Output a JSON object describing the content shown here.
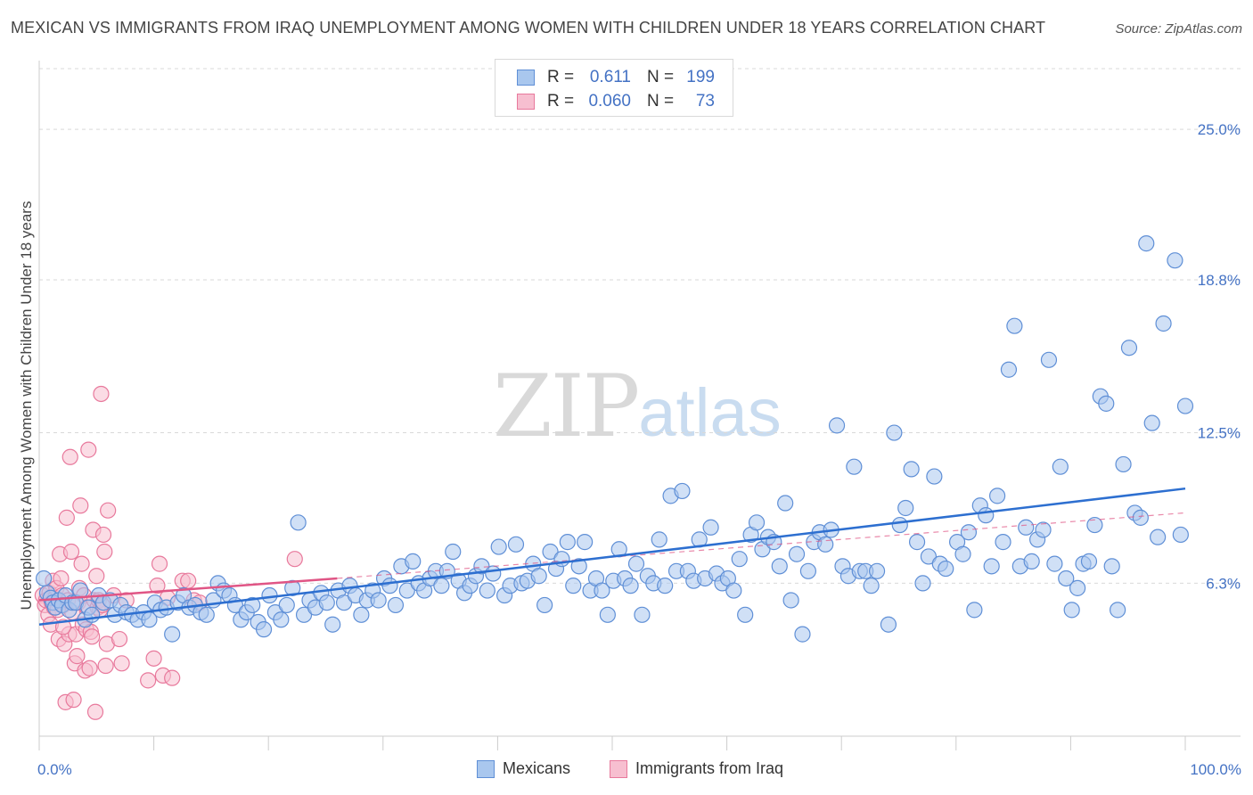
{
  "title": "MEXICAN VS IMMIGRANTS FROM IRAQ UNEMPLOYMENT AMONG WOMEN WITH CHILDREN UNDER 18 YEARS CORRELATION CHART",
  "source": "Source: ZipAtlas.com",
  "watermark": {
    "zip": "ZIP",
    "atlas": "atlas"
  },
  "legend": {
    "rows": [
      {
        "r_label": "R =",
        "r_value": "0.611",
        "n_label": "N =",
        "n_value": "199"
      },
      {
        "r_label": "R =",
        "r_value": "0.060",
        "n_label": "N =",
        "n_value": "73"
      }
    ]
  },
  "bottom_legend": {
    "mexicans": "Mexicans",
    "iraq": "Immigrants from Iraq"
  },
  "colors": {
    "blue_fill": "#a9c7ee",
    "blue_stroke": "#5f8fd6",
    "blue_line": "#2d6fd0",
    "pink_fill": "#f7bfd0",
    "pink_stroke": "#e8799c",
    "pink_line": "#e05585",
    "tick_text": "#4472c4",
    "grid": "#d9d9d9"
  },
  "chart_data": {
    "type": "scatter",
    "title": "MEXICAN VS IMMIGRANTS FROM IRAQ UNEMPLOYMENT AMONG WOMEN WITH CHILDREN UNDER 18 YEARS CORRELATION CHART",
    "xlabel": "",
    "ylabel": "Unemployment Among Women with Children Under 18 years",
    "xlim": [
      0,
      100
    ],
    "ylim": [
      0,
      27.5
    ],
    "x_tick_labels": [
      "0.0%",
      "100.0%"
    ],
    "y_ticks": [
      6.3,
      12.5,
      18.8,
      25.0
    ],
    "y_tick_labels": [
      "6.3%",
      "12.5%",
      "18.8%",
      "25.0%"
    ],
    "grid": true,
    "legend_position": "top-center",
    "series": [
      {
        "name": "Mexicans",
        "R": 0.611,
        "N": 199,
        "trend": {
          "x": [
            0,
            100
          ],
          "y": [
            4.6,
            10.2
          ]
        },
        "points": [
          [
            0.4,
            6.5
          ],
          [
            0.7,
            5.9
          ],
          [
            1.0,
            5.7
          ],
          [
            1.2,
            5.5
          ],
          [
            1.4,
            5.3
          ],
          [
            1.7,
            5.6
          ],
          [
            2.0,
            5.4
          ],
          [
            2.3,
            5.8
          ],
          [
            2.6,
            5.2
          ],
          [
            2.9,
            5.5
          ],
          [
            3.2,
            5.5
          ],
          [
            3.6,
            6.0
          ],
          [
            4.0,
            4.8
          ],
          [
            4.3,
            5.3
          ],
          [
            4.6,
            5.0
          ],
          [
            5.2,
            5.8
          ],
          [
            5.6,
            5.5
          ],
          [
            6.2,
            5.6
          ],
          [
            6.6,
            5.0
          ],
          [
            7.1,
            5.4
          ],
          [
            7.6,
            5.1
          ],
          [
            8.1,
            5.0
          ],
          [
            8.6,
            4.8
          ],
          [
            9.1,
            5.1
          ],
          [
            9.6,
            4.8
          ],
          [
            10.1,
            5.5
          ],
          [
            10.6,
            5.2
          ],
          [
            11.1,
            5.3
          ],
          [
            11.6,
            4.2
          ],
          [
            12.1,
            5.5
          ],
          [
            12.6,
            5.8
          ],
          [
            13.1,
            5.3
          ],
          [
            13.6,
            5.4
          ],
          [
            14.1,
            5.1
          ],
          [
            14.6,
            5.0
          ],
          [
            15.2,
            5.6
          ],
          [
            15.6,
            6.3
          ],
          [
            16.1,
            6.0
          ],
          [
            16.6,
            5.8
          ],
          [
            17.1,
            5.4
          ],
          [
            17.6,
            4.8
          ],
          [
            18.1,
            5.1
          ],
          [
            18.6,
            5.4
          ],
          [
            19.1,
            4.7
          ],
          [
            19.6,
            4.4
          ],
          [
            20.1,
            5.8
          ],
          [
            20.6,
            5.1
          ],
          [
            21.1,
            4.8
          ],
          [
            21.6,
            5.4
          ],
          [
            22.1,
            6.1
          ],
          [
            22.6,
            8.8
          ],
          [
            23.1,
            5.0
          ],
          [
            23.6,
            5.6
          ],
          [
            24.1,
            5.3
          ],
          [
            24.6,
            5.9
          ],
          [
            25.1,
            5.5
          ],
          [
            25.6,
            4.6
          ],
          [
            26.1,
            6.0
          ],
          [
            26.6,
            5.5
          ],
          [
            27.1,
            6.2
          ],
          [
            27.6,
            5.8
          ],
          [
            28.1,
            5.0
          ],
          [
            28.6,
            5.6
          ],
          [
            29.1,
            6.0
          ],
          [
            29.6,
            5.6
          ],
          [
            30.1,
            6.5
          ],
          [
            30.6,
            6.2
          ],
          [
            31.1,
            5.4
          ],
          [
            31.6,
            7.0
          ],
          [
            32.1,
            6.0
          ],
          [
            32.6,
            7.2
          ],
          [
            33.1,
            6.3
          ],
          [
            33.6,
            6.0
          ],
          [
            34.1,
            6.5
          ],
          [
            34.6,
            6.8
          ],
          [
            35.1,
            6.2
          ],
          [
            35.6,
            6.8
          ],
          [
            36.1,
            7.6
          ],
          [
            36.6,
            6.4
          ],
          [
            37.1,
            5.9
          ],
          [
            37.6,
            6.2
          ],
          [
            38.1,
            6.6
          ],
          [
            38.6,
            7.0
          ],
          [
            39.1,
            6.0
          ],
          [
            39.6,
            6.7
          ],
          [
            40.1,
            7.8
          ],
          [
            40.6,
            5.8
          ],
          [
            41.1,
            6.2
          ],
          [
            41.6,
            7.9
          ],
          [
            42.1,
            6.3
          ],
          [
            42.6,
            6.4
          ],
          [
            43.1,
            7.1
          ],
          [
            43.6,
            6.6
          ],
          [
            44.1,
            5.4
          ],
          [
            44.6,
            7.6
          ],
          [
            45.1,
            6.9
          ],
          [
            45.6,
            7.3
          ],
          [
            46.1,
            8.0
          ],
          [
            46.6,
            6.2
          ],
          [
            47.1,
            7.0
          ],
          [
            47.6,
            8.0
          ],
          [
            48.1,
            6.0
          ],
          [
            48.6,
            6.5
          ],
          [
            49.1,
            6.0
          ],
          [
            49.6,
            5.0
          ],
          [
            50.1,
            6.4
          ],
          [
            50.6,
            7.7
          ],
          [
            51.1,
            6.5
          ],
          [
            51.6,
            6.2
          ],
          [
            52.1,
            7.1
          ],
          [
            52.6,
            5.0
          ],
          [
            53.1,
            6.6
          ],
          [
            53.6,
            6.3
          ],
          [
            54.1,
            8.1
          ],
          [
            54.6,
            6.2
          ],
          [
            55.1,
            9.9
          ],
          [
            55.6,
            6.8
          ],
          [
            56.1,
            10.1
          ],
          [
            56.6,
            6.8
          ],
          [
            57.1,
            6.4
          ],
          [
            57.6,
            8.1
          ],
          [
            58.1,
            6.5
          ],
          [
            58.6,
            8.6
          ],
          [
            59.1,
            6.7
          ],
          [
            59.6,
            6.3
          ],
          [
            60.1,
            6.5
          ],
          [
            60.6,
            6.0
          ],
          [
            61.1,
            7.3
          ],
          [
            61.6,
            5.0
          ],
          [
            62.1,
            8.3
          ],
          [
            62.6,
            8.8
          ],
          [
            63.1,
            7.7
          ],
          [
            63.6,
            8.2
          ],
          [
            64.1,
            8.0
          ],
          [
            64.6,
            7.0
          ],
          [
            65.1,
            9.6
          ],
          [
            65.6,
            5.6
          ],
          [
            66.1,
            7.5
          ],
          [
            66.6,
            4.2
          ],
          [
            67.1,
            6.8
          ],
          [
            67.6,
            8.0
          ],
          [
            68.1,
            8.4
          ],
          [
            68.6,
            7.9
          ],
          [
            69.1,
            8.5
          ],
          [
            69.6,
            12.8
          ],
          [
            70.1,
            7.0
          ],
          [
            70.6,
            6.6
          ],
          [
            71.1,
            11.1
          ],
          [
            71.6,
            6.8
          ],
          [
            72.1,
            6.8
          ],
          [
            72.6,
            6.2
          ],
          [
            73.1,
            6.8
          ],
          [
            74.1,
            4.6
          ],
          [
            74.6,
            12.5
          ],
          [
            75.1,
            8.7
          ],
          [
            75.6,
            9.4
          ],
          [
            76.1,
            11.0
          ],
          [
            76.6,
            8.0
          ],
          [
            77.1,
            6.3
          ],
          [
            77.6,
            7.4
          ],
          [
            78.1,
            10.7
          ],
          [
            78.6,
            7.1
          ],
          [
            79.1,
            6.9
          ],
          [
            80.1,
            8.0
          ],
          [
            80.6,
            7.5
          ],
          [
            81.1,
            8.4
          ],
          [
            81.6,
            5.2
          ],
          [
            82.1,
            9.5
          ],
          [
            82.6,
            9.1
          ],
          [
            83.1,
            7.0
          ],
          [
            83.6,
            9.9
          ],
          [
            84.1,
            8.0
          ],
          [
            84.6,
            15.1
          ],
          [
            85.1,
            16.9
          ],
          [
            85.6,
            7.0
          ],
          [
            86.1,
            8.6
          ],
          [
            86.6,
            7.2
          ],
          [
            87.1,
            8.1
          ],
          [
            87.6,
            8.5
          ],
          [
            88.1,
            15.5
          ],
          [
            88.6,
            7.1
          ],
          [
            89.1,
            11.1
          ],
          [
            89.6,
            6.5
          ],
          [
            90.1,
            5.2
          ],
          [
            90.6,
            6.1
          ],
          [
            91.1,
            7.1
          ],
          [
            91.6,
            7.2
          ],
          [
            92.1,
            8.7
          ],
          [
            92.6,
            14.0
          ],
          [
            93.1,
            13.7
          ],
          [
            93.6,
            7.0
          ],
          [
            94.1,
            5.2
          ],
          [
            94.6,
            11.2
          ],
          [
            95.1,
            16.0
          ],
          [
            95.6,
            9.2
          ],
          [
            96.1,
            9.0
          ],
          [
            96.6,
            20.3
          ],
          [
            97.1,
            12.9
          ],
          [
            97.6,
            8.2
          ],
          [
            98.1,
            17.0
          ],
          [
            99.1,
            19.6
          ],
          [
            99.6,
            8.3
          ],
          [
            100.0,
            13.6
          ]
        ]
      },
      {
        "name": "Immigrants from Iraq",
        "R": 0.06,
        "N": 73,
        "trend": {
          "x": [
            0,
            26
          ],
          "y": [
            5.6,
            6.5
          ]
        },
        "trend_extension": {
          "x": [
            26,
            100
          ],
          "y": [
            6.5,
            9.2
          ]
        },
        "points": [
          [
            0.3,
            5.8
          ],
          [
            0.5,
            5.4
          ],
          [
            0.6,
            5.6
          ],
          [
            0.8,
            5.0
          ],
          [
            0.9,
            5.9
          ],
          [
            1.0,
            4.6
          ],
          [
            1.1,
            5.5
          ],
          [
            1.2,
            6.4
          ],
          [
            1.3,
            5.3
          ],
          [
            1.4,
            5.7
          ],
          [
            1.5,
            6.1
          ],
          [
            1.6,
            5.2
          ],
          [
            1.7,
            4.0
          ],
          [
            1.8,
            7.5
          ],
          [
            1.9,
            6.5
          ],
          [
            2.0,
            5.8
          ],
          [
            2.1,
            5.4
          ],
          [
            2.2,
            3.8
          ],
          [
            2.3,
            1.4
          ],
          [
            2.4,
            9.0
          ],
          [
            2.5,
            5.6
          ],
          [
            2.6,
            4.2
          ],
          [
            2.7,
            11.5
          ],
          [
            2.8,
            7.6
          ],
          [
            2.9,
            5.1
          ],
          [
            3.0,
            1.5
          ],
          [
            3.1,
            3.0
          ],
          [
            3.2,
            4.2
          ],
          [
            3.3,
            3.3
          ],
          [
            3.4,
            5.5
          ],
          [
            3.5,
            6.1
          ],
          [
            3.6,
            9.5
          ],
          [
            3.7,
            7.1
          ],
          [
            3.8,
            4.6
          ],
          [
            3.9,
            5.8
          ],
          [
            4.0,
            2.7
          ],
          [
            4.1,
            4.4
          ],
          [
            4.2,
            5.3
          ],
          [
            4.3,
            11.8
          ],
          [
            4.4,
            2.8
          ],
          [
            4.5,
            4.3
          ],
          [
            4.6,
            4.1
          ],
          [
            4.7,
            8.5
          ],
          [
            4.8,
            5.6
          ],
          [
            4.9,
            1.0
          ],
          [
            5.0,
            6.6
          ],
          [
            5.1,
            5.3
          ],
          [
            5.2,
            5.6
          ],
          [
            5.3,
            5.2
          ],
          [
            5.4,
            14.1
          ],
          [
            5.5,
            5.4
          ],
          [
            5.6,
            8.3
          ],
          [
            5.7,
            7.6
          ],
          [
            5.8,
            2.9
          ],
          [
            5.9,
            3.8
          ],
          [
            6.0,
            9.3
          ],
          [
            6.5,
            5.8
          ],
          [
            7.0,
            4.0
          ],
          [
            7.2,
            3.0
          ],
          [
            7.6,
            5.6
          ],
          [
            9.5,
            2.3
          ],
          [
            10.0,
            3.2
          ],
          [
            10.3,
            6.2
          ],
          [
            10.5,
            7.1
          ],
          [
            10.8,
            2.5
          ],
          [
            11.2,
            5.7
          ],
          [
            11.6,
            2.4
          ],
          [
            12.5,
            6.4
          ],
          [
            13.0,
            6.4
          ],
          [
            13.5,
            5.6
          ],
          [
            14.0,
            5.5
          ],
          [
            22.3,
            7.3
          ],
          [
            2.1,
            4.5
          ]
        ]
      }
    ]
  }
}
